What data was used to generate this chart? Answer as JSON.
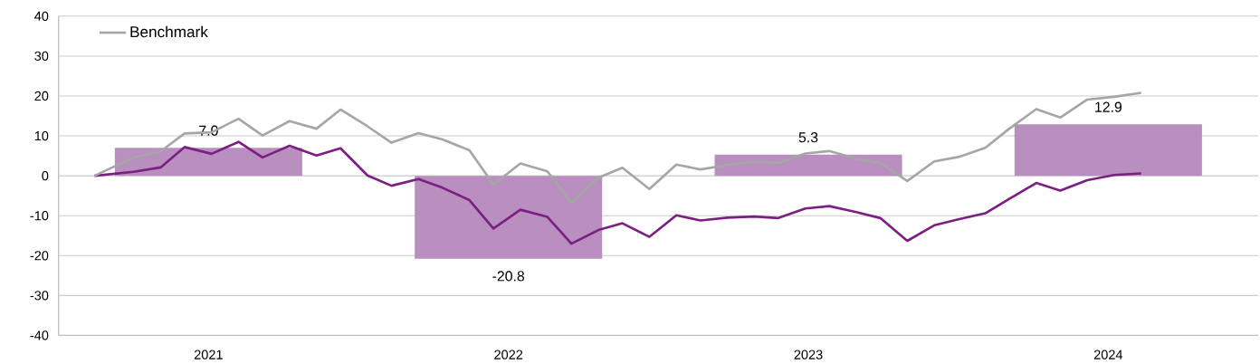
{
  "chart_data": {
    "type": "bar",
    "xlim": [
      2020.5,
      2024.5
    ],
    "xticks": [
      2021,
      2022,
      2023,
      2024
    ],
    "ylim": [
      -40,
      40
    ],
    "yticks": [
      -40,
      -30,
      -20,
      -10,
      0,
      10,
      20,
      30,
      40
    ],
    "grid": "y",
    "legend": "top left",
    "series": [
      {
        "color": "#b88fbf",
        "x": [
          2021,
          2022,
          2023,
          2024
        ],
        "values": [
          7.0,
          -20.8,
          5.3,
          12.9
        ],
        "value_labels": [
          "7.0",
          "-20.8",
          "5.3",
          "12.9"
        ]
      },
      {
        "type": "line",
        "color": "#7b1f82",
        "x": [
          2020.62,
          2020.75,
          2020.84,
          2020.92,
          2021.01,
          2021.1,
          2021.18,
          2021.27,
          2021.36,
          2021.44,
          2021.53,
          2021.61,
          2021.7,
          2021.78,
          2021.87,
          2021.95,
          2022.04,
          2022.13,
          2022.21,
          2022.3,
          2022.38,
          2022.47,
          2022.56,
          2022.64,
          2022.73,
          2022.82,
          2022.9,
          2022.99,
          2023.07,
          2023.16,
          2023.24,
          2023.33,
          2023.42,
          2023.5,
          2023.59,
          2023.67,
          2023.76,
          2023.84,
          2023.93,
          2024.02,
          2024.11
        ],
        "values": [
          0,
          1.0,
          2.1,
          7.2,
          5.5,
          8.5,
          4.6,
          7.5,
          5.1,
          6.9,
          0.1,
          -2.5,
          -0.8,
          -3.0,
          -6.1,
          -13.2,
          -8.5,
          -10.3,
          -17.0,
          -13.6,
          -11.9,
          -15.3,
          -9.9,
          -11.2,
          -10.5,
          -10.2,
          -10.6,
          -8.2,
          -7.6,
          -9.1,
          -10.6,
          -16.3,
          -12.4,
          -10.9,
          -9.4,
          -5.8,
          -1.8,
          -3.7,
          -1.1,
          0.2,
          0.6
        ]
      },
      {
        "type": "line",
        "name": "Benchmark",
        "color": "#a6a6a6",
        "x": [
          2020.62,
          2020.75,
          2020.84,
          2020.92,
          2021.01,
          2021.1,
          2021.18,
          2021.27,
          2021.36,
          2021.44,
          2021.53,
          2021.61,
          2021.7,
          2021.78,
          2021.87,
          2021.95,
          2022.04,
          2022.13,
          2022.21,
          2022.3,
          2022.38,
          2022.47,
          2022.56,
          2022.64,
          2022.73,
          2022.82,
          2022.9,
          2022.99,
          2023.07,
          2023.16,
          2023.24,
          2023.33,
          2023.42,
          2023.5,
          2023.59,
          2023.67,
          2023.76,
          2023.84,
          2023.93,
          2024.02,
          2024.11
        ],
        "values": [
          0,
          4.6,
          6.1,
          10.6,
          10.9,
          14.3,
          10.1,
          13.7,
          11.8,
          16.6,
          12.4,
          8.3,
          10.7,
          9.1,
          6.4,
          -2.2,
          3.1,
          1.1,
          -6.7,
          -0.5,
          2.0,
          -3.3,
          2.8,
          1.6,
          2.7,
          3.6,
          3.2,
          5.6,
          6.2,
          4.3,
          3.2,
          -1.3,
          3.6,
          4.7,
          7.0,
          11.8,
          16.7,
          14.6,
          19.1,
          19.8,
          20.8
        ]
      }
    ]
  }
}
